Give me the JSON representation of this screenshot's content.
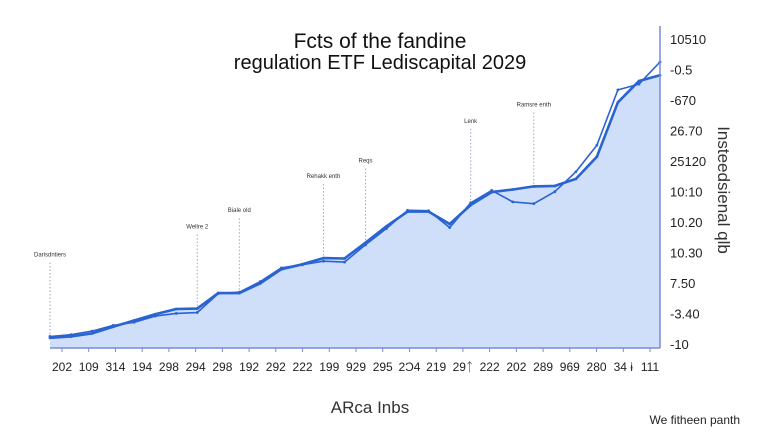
{
  "chart_data": {
    "type": "area",
    "title_lines": [
      "Fcts of the fandine",
      "regulation ETF Lediscapital 2029"
    ],
    "xlabel": "ARca Inbs",
    "ylabel": "Insteedsienal qlb",
    "footnote": "We fitheen panth",
    "x_tick_labels": [
      "202",
      "109",
      "314",
      "194",
      "298",
      "294",
      "298",
      "192",
      "292",
      "222",
      "199",
      "929",
      "295",
      "2Ͻ4",
      "219",
      "29ᛏ",
      "222",
      "202",
      "289",
      "969",
      "280",
      "34 ɨ",
      "111"
    ],
    "y_tick_labels": [
      "10510",
      "-0.5",
      "-670",
      "26.70",
      "25120",
      "10:10",
      "10.20",
      "10.30",
      "7.50",
      "-3.40",
      "-10"
    ],
    "grid": false,
    "legend": "none",
    "fill_color": "#cfdffa",
    "line_color": "#2a63d2",
    "axis_color": "#7a8ad6",
    "series": [
      {
        "values": [
          0.5,
          0.8,
          1.5,
          3.0,
          4.4,
          5.8,
          7.0,
          7.1,
          10.6,
          10.6,
          12.8,
          16.0,
          17.1,
          18.5,
          18.4,
          22.0,
          25.7,
          29.0,
          29.0,
          26.2,
          30.5,
          33.4,
          34.0,
          34.7,
          34.8,
          36.4,
          41.4,
          53.7,
          58.5,
          59.8
        ]
      },
      {
        "values": [
          0.8,
          1.2,
          2.0,
          3.3,
          4.0,
          5.4,
          6.0,
          6.2,
          10.5,
          10.8,
          13.2,
          16.3,
          17.0,
          17.8,
          17.6,
          21.5,
          25.2,
          29.3,
          29.2,
          25.4,
          31.0,
          33.8,
          31.2,
          30.8,
          33.5,
          38.0,
          44.0,
          56.5,
          57.8,
          62.8
        ]
      }
    ],
    "annotations": [
      {
        "text": "Darisdntiers",
        "x_index": 0
      },
      {
        "text": "Wellre 2",
        "x_index": 7
      },
      {
        "text": "Biale old",
        "x_index": 9
      },
      {
        "text": "Rehakk enth",
        "x_index": 13
      },
      {
        "text": "Reqs",
        "x_index": 15
      },
      {
        "text": "Lenk",
        "x_index": 20
      },
      {
        "text": "Ramsre  enth",
        "x_index": 23
      }
    ]
  }
}
